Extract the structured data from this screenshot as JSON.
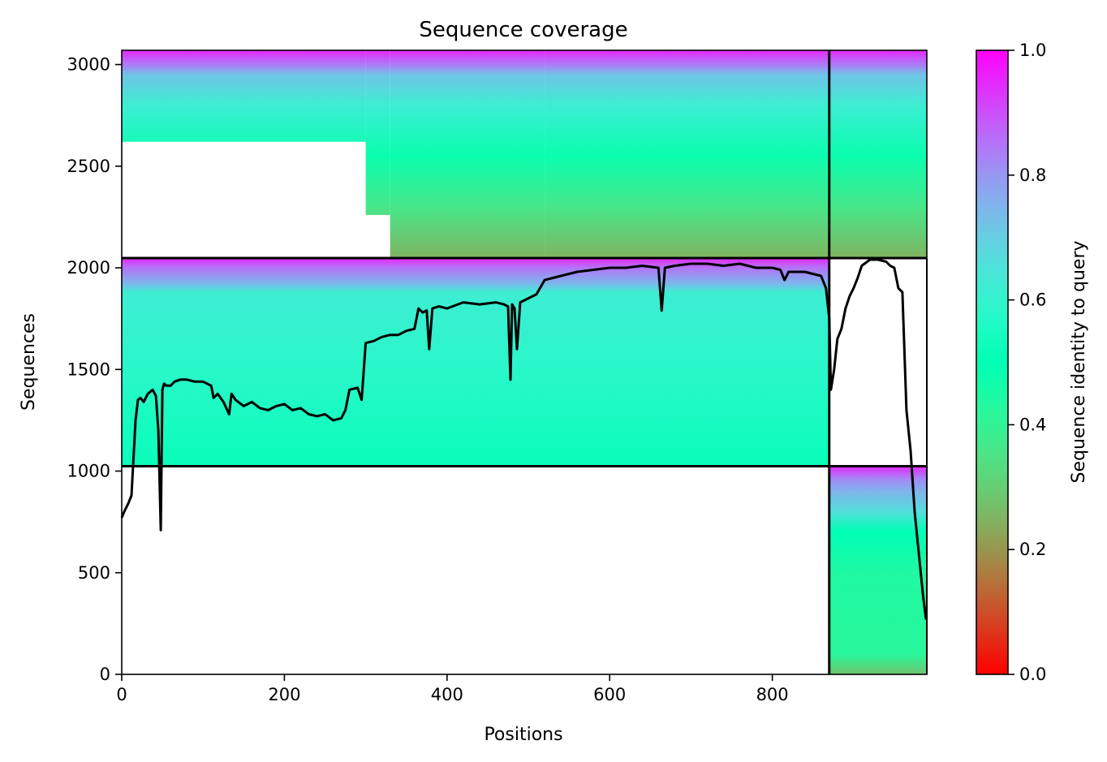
{
  "chart_data": {
    "type": "heatmap",
    "title": "Sequence coverage",
    "xlabel": "Positions",
    "ylabel": "Sequences",
    "xlim": [
      0,
      990
    ],
    "ylim": [
      0,
      3070
    ],
    "x_ticks": [
      0,
      200,
      400,
      600,
      800
    ],
    "y_ticks": [
      0,
      500,
      1000,
      1500,
      2000,
      2500,
      3000
    ],
    "colorbar": {
      "label": "Sequence identity to query",
      "range": [
        0,
        1
      ],
      "ticks": [
        "0.0",
        "0.2",
        "0.4",
        "0.6",
        "0.8",
        "1.0"
      ],
      "colormap": "rainbow_r"
    },
    "chain_boundary_x": 870,
    "grid": false,
    "msa_blocks": [
      {
        "name": "paired-alignment",
        "x": [
          0,
          990
        ],
        "seq_range": [
          2048,
          3070
        ],
        "identity_stops": [
          [
            3070,
            0.95
          ],
          [
            3000,
            0.84
          ],
          [
            2950,
            0.72
          ],
          [
            2800,
            0.62
          ],
          [
            2550,
            0.48
          ],
          [
            2300,
            0.36
          ],
          [
            2048,
            0.25
          ]
        ],
        "segments": [
          {
            "x": [
              0,
              300
            ],
            "seq_range": [
              2620,
              3070
            ]
          },
          {
            "x": [
              300,
              330
            ],
            "seq_range": [
              2260,
              3070
            ]
          },
          {
            "x": [
              330,
              520
            ],
            "seq_range": [
              2048,
              3070
            ]
          },
          {
            "x": [
              520,
              990
            ],
            "seq_range": [
              2048,
              3070
            ]
          }
        ]
      },
      {
        "name": "chain-a-unpaired",
        "x": [
          0,
          870
        ],
        "seq_range": [
          1024,
          2048
        ],
        "identity_stops": [
          [
            2048,
            0.95
          ],
          [
            2000,
            0.85
          ],
          [
            1920,
            0.74
          ],
          [
            1880,
            0.62
          ],
          [
            1500,
            0.58
          ],
          [
            1024,
            0.52
          ]
        ]
      },
      {
        "name": "chain-b-unpaired",
        "x": [
          870,
          990
        ],
        "seq_range": [
          0,
          1024
        ],
        "identity_stops": [
          [
            1024,
            0.95
          ],
          [
            960,
            0.82
          ],
          [
            900,
            0.75
          ],
          [
            800,
            0.66
          ],
          [
            700,
            0.5
          ],
          [
            500,
            0.44
          ],
          [
            100,
            0.42
          ],
          [
            0,
            0.28
          ]
        ]
      }
    ],
    "series": [
      {
        "type": "line",
        "color": "#000000",
        "x": [
          0,
          3,
          8,
          12,
          17,
          20,
          23,
          27,
          32,
          38,
          42,
          45,
          48,
          50,
          52,
          55,
          60,
          65,
          72,
          80,
          90,
          100,
          110,
          113,
          118,
          125,
          132,
          135,
          140,
          150,
          160,
          170,
          180,
          190,
          200,
          210,
          220,
          230,
          240,
          250,
          260,
          270,
          275,
          280,
          290,
          295,
          300,
          310,
          320,
          330,
          340,
          350,
          360,
          365,
          370,
          375,
          378,
          382,
          390,
          400,
          420,
          440,
          460,
          470,
          475,
          478,
          480,
          483,
          486,
          490,
          500,
          510,
          520,
          540,
          560,
          580,
          600,
          620,
          640,
          660,
          664,
          668,
          680,
          700,
          720,
          740,
          760,
          780,
          800,
          810,
          815,
          820,
          840,
          860,
          866,
          870,
          872,
          876,
          880,
          885,
          890,
          895,
          900,
          905,
          910,
          920,
          930,
          940,
          945,
          950,
          955,
          960,
          965,
          970,
          975,
          980,
          985,
          989
        ],
        "y": [
          770,
          800,
          840,
          880,
          1250,
          1350,
          1360,
          1340,
          1380,
          1400,
          1370,
          1200,
          710,
          1400,
          1430,
          1420,
          1420,
          1440,
          1450,
          1450,
          1440,
          1440,
          1420,
          1360,
          1380,
          1340,
          1280,
          1380,
          1350,
          1320,
          1340,
          1310,
          1300,
          1320,
          1330,
          1300,
          1310,
          1280,
          1270,
          1280,
          1250,
          1260,
          1300,
          1400,
          1410,
          1350,
          1630,
          1640,
          1660,
          1670,
          1670,
          1690,
          1700,
          1800,
          1780,
          1790,
          1600,
          1800,
          1810,
          1800,
          1830,
          1820,
          1830,
          1820,
          1810,
          1450,
          1820,
          1800,
          1600,
          1830,
          1850,
          1870,
          1940,
          1960,
          1980,
          1990,
          2000,
          2000,
          2010,
          2000,
          1790,
          2000,
          2010,
          2020,
          2020,
          2010,
          2020,
          2000,
          2000,
          1990,
          1940,
          1980,
          1980,
          1960,
          1900,
          1750,
          1400,
          1500,
          1650,
          1700,
          1800,
          1860,
          1900,
          1950,
          2010,
          2040,
          2040,
          2030,
          2010,
          2000,
          1900,
          1880,
          1300,
          1100,
          800,
          600,
          400,
          270
        ]
      }
    ]
  }
}
